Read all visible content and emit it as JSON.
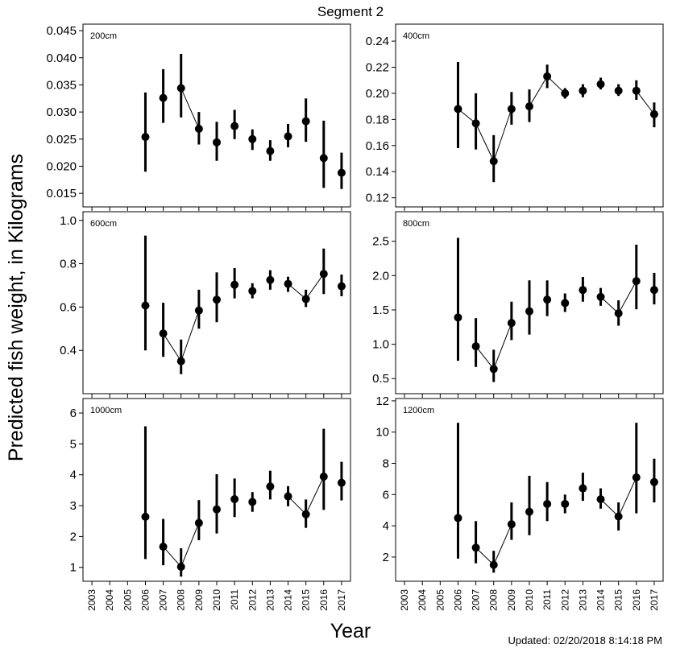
{
  "figure": {
    "title": "Segment 2",
    "ylabel": "Predicted fish weight, in Kilograms",
    "xlabel": "Year",
    "updated": "Updated: 02/20/2018 8:14:18 PM"
  },
  "chart_data": [
    {
      "type": "scatter",
      "panel_label": "200cm",
      "x": [
        2006,
        2007,
        2008,
        2009,
        2010,
        2011,
        2012,
        2013,
        2014,
        2015,
        2016,
        2017
      ],
      "values": [
        0.0254,
        0.0326,
        0.0344,
        0.0269,
        0.0244,
        0.0274,
        0.025,
        0.0228,
        0.0255,
        0.0283,
        0.0215,
        0.0188
      ],
      "lower": [
        0.019,
        0.028,
        0.029,
        0.024,
        0.021,
        0.025,
        0.023,
        0.021,
        0.0235,
        0.0245,
        0.016,
        0.0158
      ],
      "upper": [
        0.0336,
        0.0379,
        0.0407,
        0.03,
        0.0282,
        0.0304,
        0.0268,
        0.0248,
        0.0278,
        0.0325,
        0.0284,
        0.0225
      ],
      "connected": [
        [
          2008,
          2009
        ]
      ],
      "ylim": [
        0.0125,
        0.0462
      ],
      "yticks": [
        0.015,
        0.02,
        0.025,
        0.03,
        0.035,
        0.04,
        0.045
      ],
      "ytick_labels": [
        "0.015",
        "0.020",
        "0.025",
        "0.030",
        "0.035",
        "0.040",
        "0.045"
      ],
      "ytick_side": "left",
      "xlim": [
        2002.5,
        2017.5
      ],
      "xticks": [
        2003,
        2004,
        2005,
        2006,
        2007,
        2008,
        2009,
        2010,
        2011,
        2012,
        2013,
        2014,
        2015,
        2016,
        2017
      ]
    },
    {
      "type": "scatter",
      "panel_label": "400cm",
      "x": [
        2006,
        2007,
        2008,
        2009,
        2010,
        2011,
        2012,
        2013,
        2014,
        2015,
        2016,
        2017
      ],
      "values": [
        0.188,
        0.177,
        0.148,
        0.188,
        0.19,
        0.213,
        0.2,
        0.202,
        0.207,
        0.202,
        0.202,
        0.184
      ],
      "lower": [
        0.158,
        0.157,
        0.132,
        0.176,
        0.178,
        0.204,
        0.196,
        0.197,
        0.203,
        0.198,
        0.195,
        0.174
      ],
      "upper": [
        0.224,
        0.2,
        0.168,
        0.201,
        0.203,
        0.222,
        0.204,
        0.207,
        0.212,
        0.207,
        0.21,
        0.193
      ],
      "connected": [
        [
          2006,
          2007
        ],
        [
          2007,
          2008
        ],
        [
          2008,
          2009
        ],
        [
          2010,
          2011
        ],
        [
          2011,
          2012
        ],
        [
          2016,
          2017
        ]
      ],
      "ylim": [
        0.113,
        0.253
      ],
      "yticks": [
        0.12,
        0.14,
        0.16,
        0.18,
        0.2,
        0.22,
        0.24
      ],
      "ytick_labels": [
        "0.12",
        "0.14",
        "0.16",
        "0.18",
        "0.20",
        "0.22",
        "0.24"
      ],
      "ytick_side": "left",
      "xlim": [
        2002.5,
        2017.5
      ],
      "xticks": [
        2003,
        2004,
        2005,
        2006,
        2007,
        2008,
        2009,
        2010,
        2011,
        2012,
        2013,
        2014,
        2015,
        2016,
        2017
      ]
    },
    {
      "type": "scatter",
      "panel_label": "600cm",
      "x": [
        2006,
        2007,
        2008,
        2009,
        2010,
        2011,
        2012,
        2013,
        2014,
        2015,
        2016,
        2017
      ],
      "values": [
        0.607,
        0.478,
        0.35,
        0.584,
        0.634,
        0.703,
        0.674,
        0.725,
        0.707,
        0.637,
        0.753,
        0.696
      ],
      "lower": [
        0.4,
        0.37,
        0.29,
        0.5,
        0.53,
        0.64,
        0.64,
        0.68,
        0.67,
        0.6,
        0.66,
        0.65
      ],
      "upper": [
        0.93,
        0.62,
        0.45,
        0.68,
        0.76,
        0.78,
        0.71,
        0.77,
        0.74,
        0.68,
        0.87,
        0.75
      ],
      "connected": [
        [
          2007,
          2008
        ],
        [
          2008,
          2009
        ],
        [
          2014,
          2015
        ],
        [
          2015,
          2016
        ]
      ],
      "ylim": [
        0.2,
        1.04
      ],
      "yticks": [
        0.4,
        0.6,
        0.8,
        1.0
      ],
      "ytick_labels": [
        "0.4",
        "0.6",
        "0.8",
        "1.0"
      ],
      "ytick_side": "left",
      "xlim": [
        2002.5,
        2017.5
      ],
      "xticks": [
        2003,
        2004,
        2005,
        2006,
        2007,
        2008,
        2009,
        2010,
        2011,
        2012,
        2013,
        2014,
        2015,
        2016,
        2017
      ]
    },
    {
      "type": "scatter",
      "panel_label": "800cm",
      "x": [
        2006,
        2007,
        2008,
        2009,
        2010,
        2011,
        2012,
        2013,
        2014,
        2015,
        2016,
        2017
      ],
      "values": [
        1.39,
        0.97,
        0.64,
        1.31,
        1.48,
        1.65,
        1.6,
        1.79,
        1.69,
        1.45,
        1.92,
        1.79
      ],
      "lower": [
        0.76,
        0.67,
        0.45,
        1.06,
        1.14,
        1.41,
        1.47,
        1.62,
        1.56,
        1.27,
        1.51,
        1.58
      ],
      "upper": [
        2.55,
        1.38,
        0.92,
        1.62,
        1.93,
        1.93,
        1.74,
        1.98,
        1.82,
        1.64,
        2.45,
        2.04
      ],
      "connected": [
        [
          2007,
          2008
        ],
        [
          2008,
          2009
        ],
        [
          2014,
          2015
        ],
        [
          2015,
          2016
        ]
      ],
      "ylim": [
        0.28,
        2.93
      ],
      "yticks": [
        0.5,
        1.0,
        1.5,
        2.0,
        2.5
      ],
      "ytick_labels": [
        "0.5",
        "1.0",
        "1.5",
        "2.0",
        "2.5"
      ],
      "ytick_side": "left",
      "xlim": [
        2002.5,
        2017.5
      ],
      "xticks": [
        2003,
        2004,
        2005,
        2006,
        2007,
        2008,
        2009,
        2010,
        2011,
        2012,
        2013,
        2014,
        2015,
        2016,
        2017
      ]
    },
    {
      "type": "scatter",
      "panel_label": "1000cm",
      "x": [
        2006,
        2007,
        2008,
        2009,
        2010,
        2011,
        2012,
        2013,
        2014,
        2015,
        2016,
        2017
      ],
      "values": [
        2.64,
        1.67,
        1.02,
        2.44,
        2.88,
        3.21,
        3.12,
        3.62,
        3.3,
        2.72,
        3.94,
        3.74
      ],
      "lower": [
        1.27,
        1.07,
        0.7,
        1.88,
        2.1,
        2.63,
        2.8,
        3.2,
        2.98,
        2.28,
        2.86,
        3.17
      ],
      "upper": [
        5.57,
        2.57,
        1.62,
        3.18,
        4.02,
        3.88,
        3.44,
        4.13,
        3.63,
        3.2,
        5.49,
        4.42
      ],
      "connected": [
        [
          2007,
          2008
        ],
        [
          2008,
          2009
        ],
        [
          2014,
          2015
        ],
        [
          2015,
          2016
        ]
      ],
      "ylim": [
        0.55,
        6.47
      ],
      "yticks": [
        1,
        2,
        3,
        4,
        5,
        6
      ],
      "ytick_labels": [
        "1",
        "2",
        "3",
        "4",
        "5",
        "6"
      ],
      "ytick_side": "left",
      "xlim": [
        2002.5,
        2017.5
      ],
      "xticks": [
        2003,
        2004,
        2005,
        2006,
        2007,
        2008,
        2009,
        2010,
        2011,
        2012,
        2013,
        2014,
        2015,
        2016,
        2017
      ]
    },
    {
      "type": "scatter",
      "panel_label": "1200cm",
      "x": [
        2006,
        2007,
        2008,
        2009,
        2010,
        2011,
        2012,
        2013,
        2014,
        2015,
        2016,
        2017
      ],
      "values": [
        4.5,
        2.6,
        1.5,
        4.1,
        4.9,
        5.4,
        5.4,
        6.4,
        5.7,
        4.6,
        7.1,
        6.8
      ],
      "lower": [
        1.9,
        1.6,
        1.0,
        3.1,
        3.4,
        4.3,
        4.8,
        5.6,
        5.1,
        3.7,
        4.8,
        5.5
      ],
      "upper": [
        10.6,
        4.3,
        2.4,
        5.5,
        7.2,
        6.8,
        6.0,
        7.4,
        6.4,
        5.5,
        10.6,
        8.3
      ],
      "connected": [
        [
          2007,
          2008
        ],
        [
          2008,
          2009
        ],
        [
          2014,
          2015
        ],
        [
          2015,
          2016
        ]
      ],
      "ylim": [
        0.45,
        12.15
      ],
      "yticks": [
        2,
        4,
        6,
        8,
        10,
        12
      ],
      "ytick_labels": [
        "2",
        "4",
        "6",
        "8",
        "10",
        "12"
      ],
      "ytick_side": "left",
      "xlim": [
        2002.5,
        2017.5
      ],
      "xticks": [
        2003,
        2004,
        2005,
        2006,
        2007,
        2008,
        2009,
        2010,
        2011,
        2012,
        2013,
        2014,
        2015,
        2016,
        2017
      ]
    }
  ]
}
